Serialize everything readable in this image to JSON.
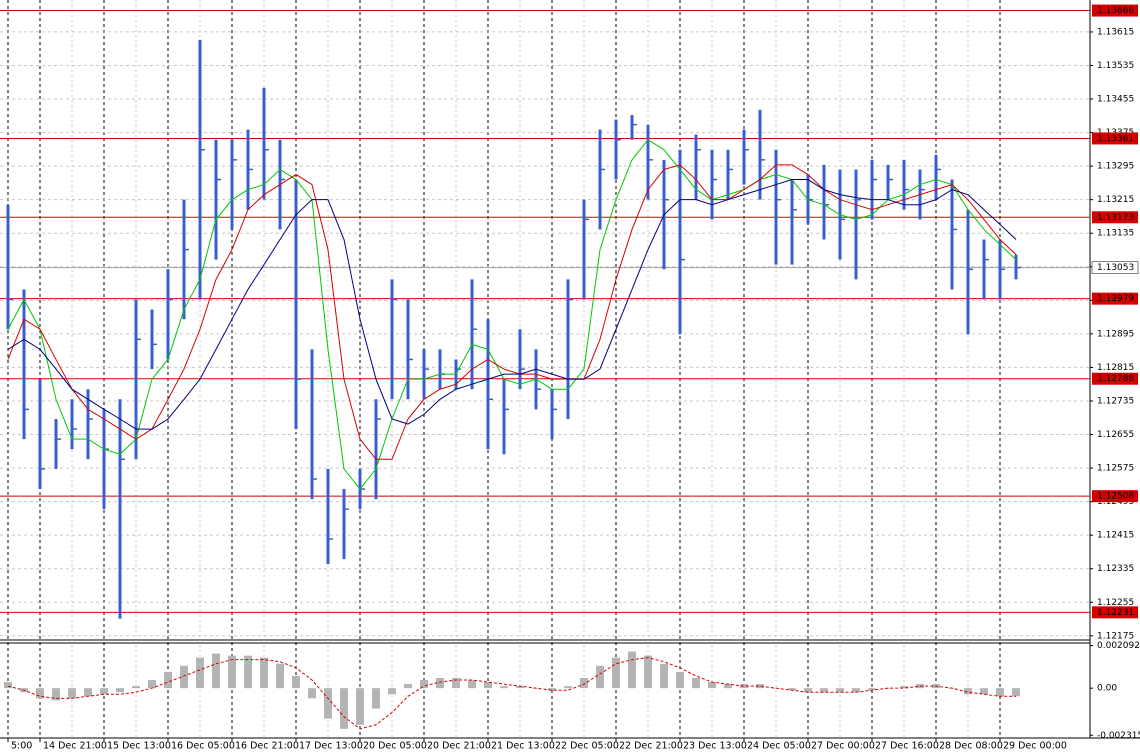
{
  "chart_data": [
    {
      "type": "ohlc",
      "categories": [
        "5:00",
        null,
        "14 Dec 21:00",
        null,
        null,
        null,
        "15 Dec 13:00",
        null,
        null,
        null,
        "16 Dec 05:00",
        null,
        null,
        null,
        "16 Dec 21:00",
        null,
        null,
        null,
        "17 Dec 13:00",
        null,
        null,
        null,
        "20 Dec 05:00",
        null,
        null,
        null,
        "20 Dec 21:00",
        null,
        null,
        null,
        "21 Dec 13:00",
        null,
        null,
        null,
        "22 Dec 05:00",
        null,
        null,
        null,
        "22 Dec 21:00",
        null,
        null,
        null,
        "23 Dec 13:00",
        null,
        null,
        null,
        "24 Dec 05:00",
        null,
        null,
        null,
        "27 Dec 00:00",
        null,
        null,
        null,
        "27 Dec 16:00",
        null,
        null,
        null,
        "28 Dec 08:00",
        null,
        null,
        null,
        "29 Dec 00:00",
        null
      ],
      "high": [
        1.13203,
        1.13001,
        1.12787,
        1.12692,
        1.12739,
        1.12763,
        1.12715,
        1.12739,
        1.12977,
        1.12953,
        1.13049,
        1.13215,
        1.13596,
        1.13358,
        1.13358,
        1.13382,
        1.13482,
        1.13358,
        1.13263,
        1.12858,
        1.12573,
        1.12525,
        1.12573,
        1.12739,
        1.13025,
        1.12977,
        1.12858,
        1.12858,
        1.12834,
        1.13025,
        1.1293,
        1.12787,
        1.12906,
        1.12858,
        1.12763,
        1.13025,
        1.13215,
        1.13382,
        1.13406,
        1.13417,
        1.13394,
        1.1331,
        1.13334,
        1.1337,
        1.13334,
        1.13334,
        1.13382,
        1.13429,
        1.13334,
        1.13263,
        1.13275,
        1.13298,
        1.13287,
        1.13287,
        1.1331,
        1.13298,
        1.1331,
        1.13287,
        1.13322,
        1.13263,
        1.13191,
        1.1312,
        1.1312,
        1.13084
      ],
      "low": [
        1.12906,
        1.12644,
        1.12525,
        1.12573,
        1.1262,
        1.12596,
        1.12477,
        1.12216,
        1.12596,
        1.12811,
        1.12834,
        1.1293,
        1.12977,
        1.13072,
        1.13144,
        1.13191,
        1.13215,
        1.13144,
        1.12668,
        1.12501,
        1.12346,
        1.12358,
        1.12477,
        1.12501,
        1.12739,
        1.12739,
        1.12739,
        1.12763,
        1.12763,
        1.12763,
        1.1262,
        1.12608,
        1.12763,
        1.12715,
        1.12644,
        1.12692,
        1.12977,
        1.13144,
        1.13263,
        1.13358,
        1.13215,
        1.13049,
        1.12894,
        1.13215,
        1.13168,
        1.13215,
        1.13251,
        1.13215,
        1.1306,
        1.1306,
        1.13156,
        1.1312,
        1.13072,
        1.13025,
        1.13168,
        1.13215,
        1.13191,
        1.13168,
        1.13215,
        1.13001,
        1.12894,
        1.12977,
        1.12977,
        1.13025
      ],
      "close": [
        1.12977,
        1.12715,
        1.12573,
        1.12644,
        1.12668,
        1.12692,
        1.1262,
        1.12596,
        1.12882,
        1.1287,
        1.12977,
        1.13096,
        1.13334,
        1.13263,
        1.1331,
        1.13287,
        1.13334,
        1.13263,
        1.12787,
        1.12549,
        1.12406,
        1.12477,
        1.12525,
        1.12692,
        1.12977,
        1.12834,
        1.12811,
        1.12799,
        1.12811,
        1.12906,
        1.12739,
        1.12715,
        1.12811,
        1.12763,
        1.12715,
        1.12977,
        1.13168,
        1.13287,
        1.13358,
        1.13394,
        1.1331,
        1.13215,
        1.13072,
        1.13334,
        1.13263,
        1.13287,
        1.13334,
        1.1331,
        1.13215,
        1.13191,
        1.13215,
        1.13203,
        1.13168,
        1.13215,
        1.13263,
        1.13263,
        1.13239,
        1.13239,
        1.13287,
        1.13144,
        1.13049,
        1.13072,
        1.13049,
        1.13053
      ],
      "color": "#3a5fcd",
      "series": [
        {
          "color": "#00c800",
          "values": [
            1.12906,
            1.12977,
            1.12906,
            1.12739,
            1.12644,
            1.12644,
            1.1262,
            1.12608,
            1.12644,
            1.12787,
            1.12834,
            1.12953,
            1.13025,
            1.13168,
            1.13215,
            1.13239,
            1.13251,
            1.13287,
            1.13263,
            1.13215,
            1.12858,
            1.12573,
            1.12525,
            1.12573,
            1.12692,
            1.12787,
            1.12787,
            1.12799,
            1.12799,
            1.1287,
            1.12858,
            1.12787,
            1.12775,
            1.12787,
            1.12763,
            1.12763,
            1.12811,
            1.13096,
            1.13215,
            1.1331,
            1.13358,
            1.13334,
            1.13287,
            1.13239,
            1.13215,
            1.13227,
            1.13239,
            1.13263,
            1.13275,
            1.13263,
            1.13215,
            1.13203,
            1.13179,
            1.13168,
            1.13179,
            1.13215,
            1.13227,
            1.13251,
            1.13263,
            1.13251,
            1.13191,
            1.13144,
            1.13108,
            1.13072
          ]
        },
        {
          "color": "#d40000",
          "values": [
            1.12834,
            1.1293,
            1.12906,
            1.12834,
            1.12763,
            1.12715,
            1.12692,
            1.12668,
            1.12644,
            1.12668,
            1.12739,
            1.12811,
            1.12906,
            1.13025,
            1.13096,
            1.13191,
            1.13227,
            1.13251,
            1.13275,
            1.13251,
            1.13096,
            1.12787,
            1.12644,
            1.12596,
            1.12596,
            1.12692,
            1.12739,
            1.12763,
            1.12775,
            1.12811,
            1.12834,
            1.12811,
            1.12799,
            1.12799,
            1.12787,
            1.12787,
            1.12787,
            1.12882,
            1.13025,
            1.13144,
            1.13239,
            1.13287,
            1.13298,
            1.13263,
            1.13215,
            1.13215,
            1.13239,
            1.13263,
            1.13298,
            1.13298,
            1.13275,
            1.13239,
            1.13215,
            1.13203,
            1.13191,
            1.13203,
            1.13215,
            1.13227,
            1.13239,
            1.13251,
            1.13215,
            1.13168,
            1.1312,
            1.13084
          ]
        },
        {
          "color": "#00007f",
          "values": [
            1.12858,
            1.12882,
            1.12858,
            1.12811,
            1.12763,
            1.12739,
            1.12715,
            1.12692,
            1.12668,
            1.12668,
            1.12692,
            1.12739,
            1.12787,
            1.12858,
            1.1293,
            1.13001,
            1.1306,
            1.1312,
            1.13179,
            1.13215,
            1.13215,
            1.1312,
            1.1293,
            1.12787,
            1.12692,
            1.1268,
            1.12703,
            1.12739,
            1.12763,
            1.12775,
            1.12787,
            1.12799,
            1.12799,
            1.12811,
            1.12799,
            1.12787,
            1.12787,
            1.12811,
            1.12906,
            1.13001,
            1.13096,
            1.13179,
            1.13215,
            1.13215,
            1.13203,
            1.13215,
            1.13227,
            1.13239,
            1.13251,
            1.13263,
            1.13263,
            1.13239,
            1.13227,
            1.1322,
            1.13215,
            1.13215,
            1.13203,
            1.13203,
            1.13215,
            1.13239,
            1.13227,
            1.13191,
            1.13156,
            1.1312
          ]
        }
      ],
      "levels": [
        {
          "value": 1.13666,
          "color": "#d40000"
        },
        {
          "value": 1.13361,
          "color": "#d40000"
        },
        {
          "value": 1.13173,
          "color": "#d40000"
        },
        {
          "value": 1.12979,
          "color": "#d40000"
        },
        {
          "value": 1.12788,
          "color": "#d40000"
        },
        {
          "value": 1.12508,
          "color": "#d40000"
        },
        {
          "value": 1.12231,
          "color": "#d40000"
        }
      ],
      "price_line": {
        "value": 1.13053,
        "color": "#a0a0a0"
      },
      "ylim": [
        1.12165,
        1.13684
      ],
      "yticks": [
        1.12175,
        1.12255,
        1.12335,
        1.12415,
        1.12495,
        1.12575,
        1.12655,
        1.12735,
        1.12815,
        1.12895,
        1.12975,
        1.13055,
        1.13135,
        1.13215,
        1.13295,
        1.13375,
        1.13455,
        1.13535,
        1.13615
      ],
      "grid": true
    },
    {
      "type": "oscillator",
      "bars": [
        0.0003,
        -0.0002,
        -0.0005,
        -0.0006,
        -0.0005,
        -0.0004,
        -0.0003,
        -0.0002,
        0.0001,
        0.0004,
        0.0008,
        0.0011,
        0.0015,
        0.0017,
        0.0016,
        0.0016,
        0.0015,
        0.0012,
        0.0006,
        -0.0005,
        -0.0015,
        -0.002,
        -0.0018,
        -0.001,
        -0.0003,
        0.0002,
        0.0004,
        0.0005,
        0.0005,
        0.0004,
        0.0003,
        0.0001,
        0.0001,
        0,
        -0.0001,
        0.0001,
        0.0005,
        0.0011,
        0.0015,
        0.0018,
        0.0016,
        0.0012,
        0.0008,
        0.0005,
        0.0003,
        0.0002,
        0.0002,
        0.0002,
        0,
        -0.0001,
        -0.0002,
        -0.0002,
        -0.0002,
        -0.0002,
        -0.0001,
        0,
        0.0001,
        0.0002,
        0.0002,
        0,
        -0.0003,
        -0.0003,
        -0.0004,
        -0.0004
      ],
      "bar_color": "#b4b4b4",
      "signal": [
        0.0001,
        -0.0001,
        -0.0004,
        -0.0005,
        -0.0005,
        -0.0004,
        -0.0003,
        -0.0003,
        -0.0002,
        0,
        0.0003,
        0.0006,
        0.0009,
        0.0012,
        0.0014,
        0.0014,
        0.0014,
        0.0013,
        0.001,
        0.0004,
        -0.0005,
        -0.0014,
        -0.002,
        -0.0018,
        -0.0012,
        -0.0004,
        0.0001,
        0.0003,
        0.0004,
        0.0004,
        0.0003,
        0.0002,
        0.0001,
        0,
        -0.0001,
        -0.0001,
        0.0002,
        0.0007,
        0.0012,
        0.0014,
        0.0015,
        0.0013,
        0.001,
        0.0006,
        0.0003,
        0.0002,
        0.0001,
        0.0001,
        0,
        -0.0001,
        -0.0002,
        -0.0002,
        -0.0002,
        -0.0002,
        -0.0001,
        0,
        0,
        0.0001,
        0.0001,
        0,
        -0.0002,
        -0.0003,
        -0.0004,
        -0.0004
      ],
      "signal_color": "#d40000",
      "ylim": [
        -0.00245,
        0.00222
      ],
      "yticks": [
        0.002092,
        {
          "value": 0,
          "label": "0.00"
        },
        -0.002315
      ]
    }
  ]
}
